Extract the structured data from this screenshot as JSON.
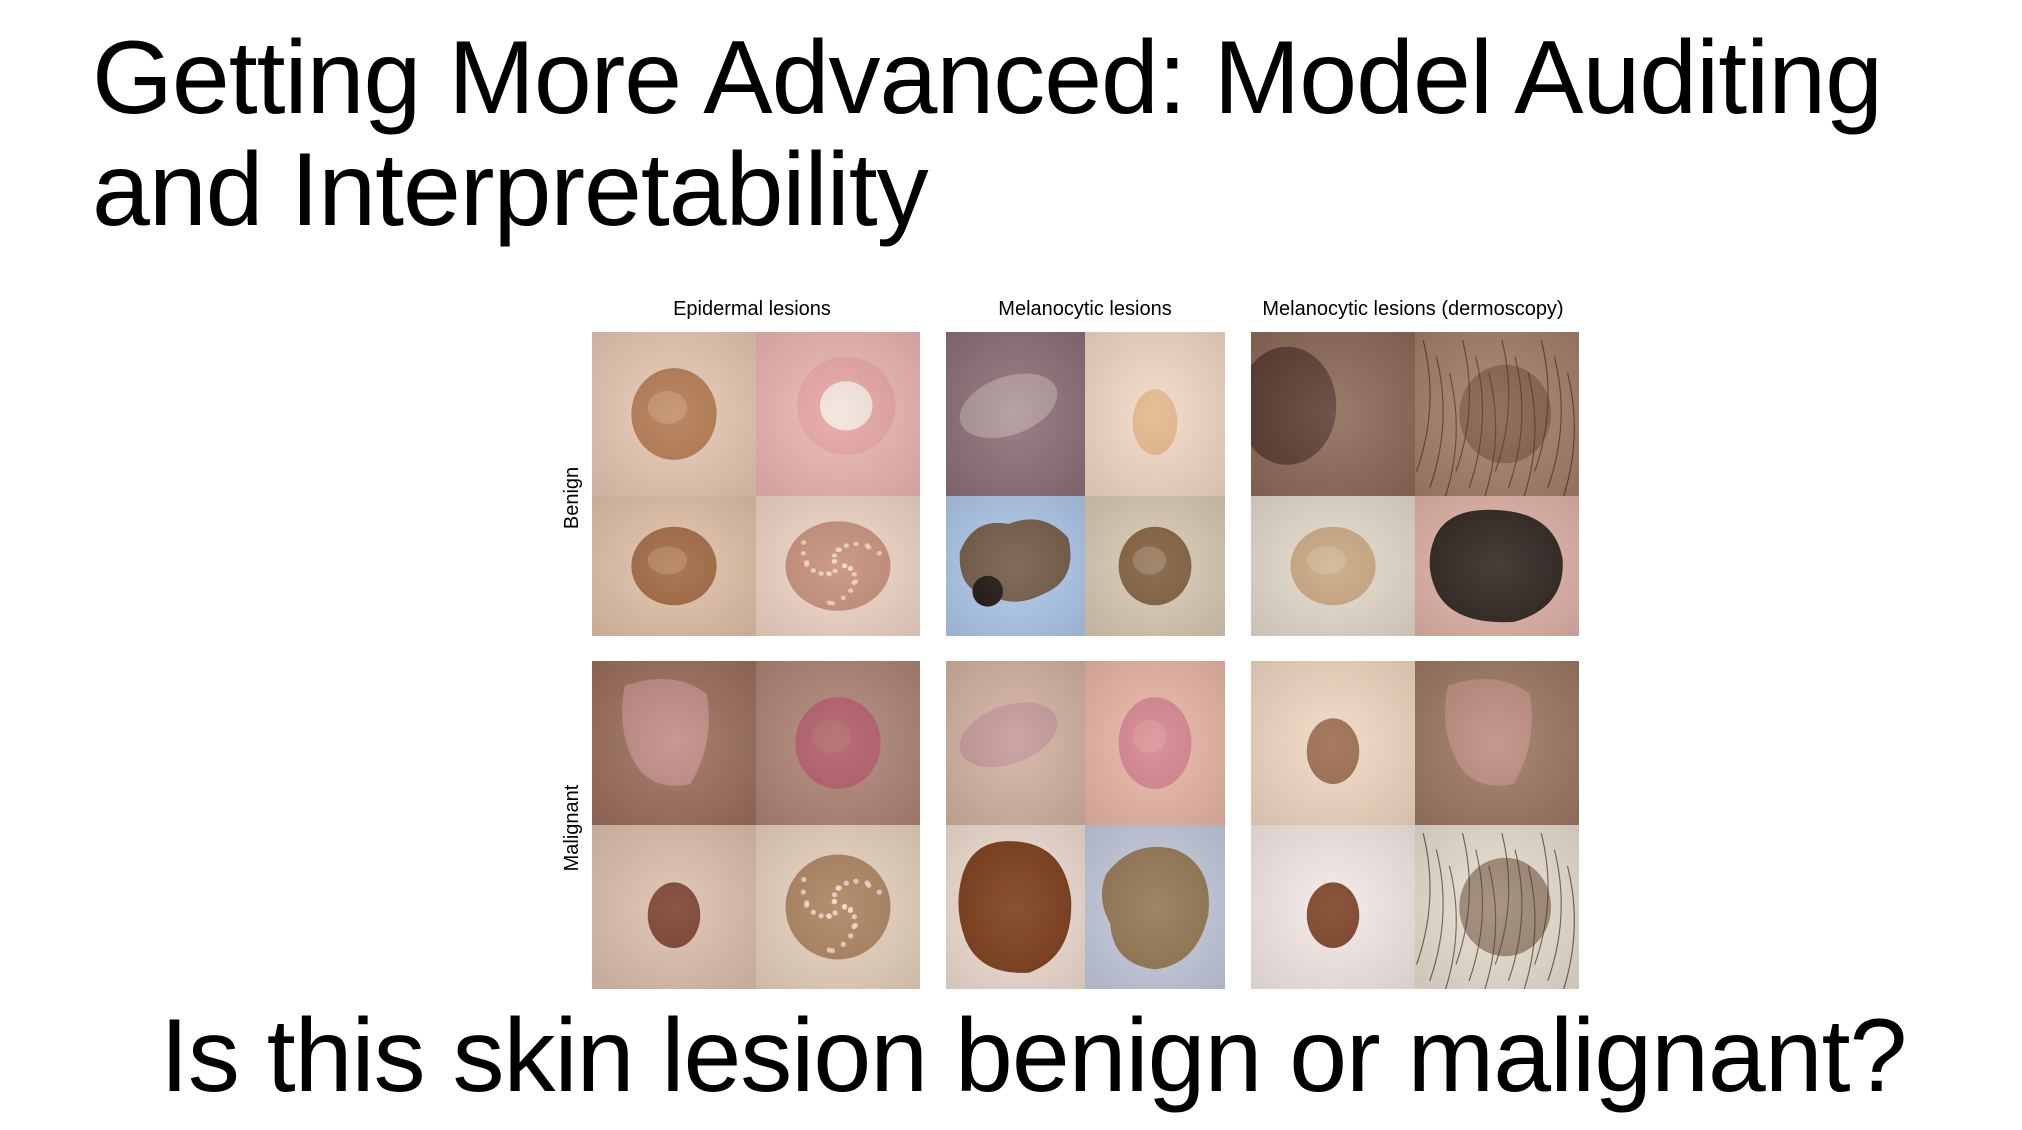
{
  "slide": {
    "title_line1": "Getting More Advanced: Model Auditing",
    "title_line2": "and Interpretability",
    "question": "Is this skin lesion benign or malignant?"
  },
  "figure": {
    "columns": [
      {
        "label": "Epidermal lesions"
      },
      {
        "label": "Melanocytic lesions"
      },
      {
        "label": "Melanocytic lesions (dermoscopy)"
      }
    ],
    "rows": [
      {
        "label": "Benign"
      },
      {
        "label": "Malignant"
      }
    ],
    "images": [
      {
        "name": "benign-epidermal-1",
        "bg": "#e8c9b4",
        "lesion": "#b0744a",
        "shape": "round"
      },
      {
        "name": "benign-epidermal-2",
        "bg": "#ecb6b4",
        "lesion": "#f3e4dc",
        "shape": "round-ring"
      },
      {
        "name": "benign-epidermal-3",
        "bg": "#8f6f78",
        "lesion": "#b7a2a2",
        "shape": "streak"
      },
      {
        "name": "benign-epidermal-4",
        "bg": "#f2d9c6",
        "lesion": "#e4b789",
        "shape": "small"
      },
      {
        "name": "benign-melanocytic-1",
        "bg": "#8e6a58",
        "lesion": "#5b3d33",
        "shape": "side"
      },
      {
        "name": "benign-melanocytic-2",
        "bg": "#a5806a",
        "lesion": "#6f4a33",
        "shape": "hairy"
      },
      {
        "name": "benign-melanocytic-3",
        "bg": "#e2c2a8",
        "lesion": "#9b6137",
        "shape": "round"
      },
      {
        "name": "benign-melanocytic-4",
        "bg": "#f1d6c7",
        "lesion": "#c08670",
        "shape": "speckle"
      },
      {
        "name": "benign-dermoscopy-1",
        "bg": "#aec8ea",
        "lesion": "#6b4c32",
        "shape": "blob-dark"
      },
      {
        "name": "benign-dermoscopy-2",
        "bg": "#d9cbb5",
        "lesion": "#7a5535",
        "shape": "round"
      },
      {
        "name": "benign-dermoscopy-3",
        "bg": "#e5dbcd",
        "lesion": "#c6a37a",
        "shape": "round"
      },
      {
        "name": "benign-dermoscopy-4",
        "bg": "#e2b4a8",
        "lesion": "#2e241f",
        "shape": "large"
      },
      {
        "name": "malignant-epidermal-1",
        "bg": "#9d6f5c",
        "lesion": "#c78f8b",
        "shape": "patch"
      },
      {
        "name": "malignant-epidermal-2",
        "bg": "#b08575",
        "lesion": "#b05866",
        "shape": "round"
      },
      {
        "name": "malignant-epidermal-3",
        "bg": "#d5b3a2",
        "lesion": "#c09095",
        "shape": "streak"
      },
      {
        "name": "malignant-epidermal-4",
        "bg": "#eab7a6",
        "lesion": "#d47f8d",
        "shape": "round"
      },
      {
        "name": "malignant-melanocytic-1",
        "bg": "#f0d9c2",
        "lesion": "#9c6a4a",
        "shape": "small"
      },
      {
        "name": "malignant-melanocytic-2",
        "bg": "#9e7963",
        "lesion": "#c38e84",
        "shape": "patch"
      },
      {
        "name": "malignant-melanocytic-3",
        "bg": "#ddc1ae",
        "lesion": "#7a3f2c",
        "shape": "small"
      },
      {
        "name": "malignant-melanocytic-4",
        "bg": "#e8d3bf",
        "lesion": "#a37853",
        "shape": "speckle"
      },
      {
        "name": "malignant-dermoscopy-1",
        "bg": "#f0ded2",
        "lesion": "#7c3a18",
        "shape": "large"
      },
      {
        "name": "malignant-dermoscopy-2",
        "bg": "#c5cbdd",
        "lesion": "#8d6c42",
        "shape": "blob"
      },
      {
        "name": "malignant-dermoscopy-3",
        "bg": "#f5eae6",
        "lesion": "#7a3f22",
        "shape": "small"
      },
      {
        "name": "malignant-dermoscopy-4",
        "bg": "#e9dfd1",
        "lesion": "#6d4b32",
        "shape": "hairy"
      }
    ]
  }
}
